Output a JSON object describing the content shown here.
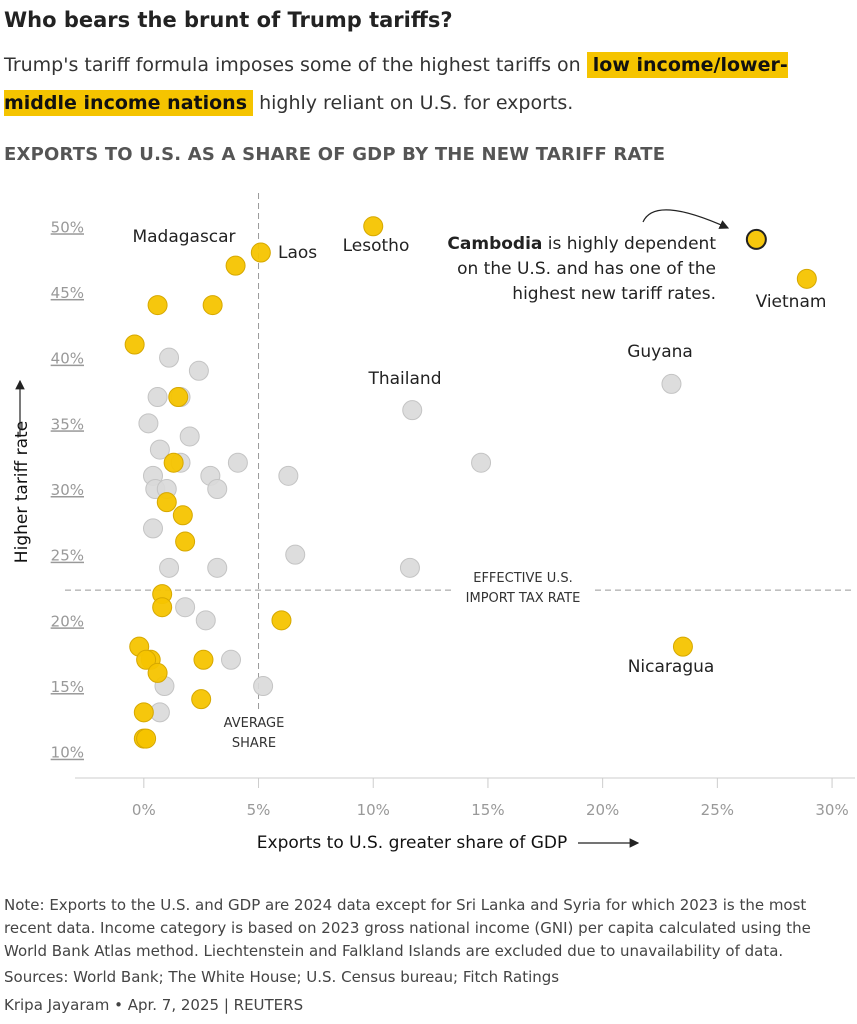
{
  "header": {
    "title": "Who bears the brunt of Trump tariffs?",
    "subtitle_pre": "Trump's tariff formula imposes some of the highest tariffs on",
    "subtitle_highlight": "low income/lower-middle income nations",
    "subtitle_post": "highly reliant on U.S. for exports."
  },
  "chart_data": {
    "type": "scatter",
    "title": "EXPORTS TO U.S. AS A SHARE OF GDP BY THE NEW TARIFF RATE",
    "xlabel": "Exports to U.S. greater share of GDP",
    "ylabel": "Higher tariff rate",
    "xlim": [
      -3,
      31
    ],
    "ylim": [
      8,
      52
    ],
    "x_ticks": [
      0,
      5,
      10,
      15,
      20,
      25,
      30
    ],
    "x_tick_labels": [
      "0%",
      "5%",
      "10%",
      "15%",
      "20%",
      "25%",
      "30%"
    ],
    "y_ticks": [
      10,
      15,
      20,
      25,
      30,
      35,
      40,
      45,
      50
    ],
    "y_tick_labels": [
      "10%",
      "15%",
      "20%",
      "25%",
      "30%",
      "35%",
      "40%",
      "45%",
      "50%"
    ],
    "reference_lines": {
      "average_share_x": 5,
      "average_share_label_1": "AVERAGE",
      "average_share_label_2": "SHARE",
      "effective_rate_y": 22.3,
      "effective_rate_label_1": "EFFECTIVE U.S.",
      "effective_rate_label_2": "IMPORT TAX RATE"
    },
    "colors": {
      "highlight": "#f5c400",
      "other": "#d9d9d9"
    },
    "series": [
      {
        "name": "Low income/lower-middle income nations",
        "color": "#f5c400",
        "points": [
          {
            "x": 10.0,
            "y": 50,
            "label": "Lesotho"
          },
          {
            "x": 5.1,
            "y": 48,
            "label": "Laos"
          },
          {
            "x": 4.0,
            "y": 47,
            "label": "Madagascar"
          },
          {
            "x": 26.7,
            "y": 49,
            "label": "Cambodia",
            "emphasis": true
          },
          {
            "x": 28.9,
            "y": 46,
            "label": "Vietnam"
          },
          {
            "x": 0.6,
            "y": 44
          },
          {
            "x": 3.0,
            "y": 44
          },
          {
            "x": -0.4,
            "y": 41
          },
          {
            "x": 1.5,
            "y": 37
          },
          {
            "x": 1.3,
            "y": 32
          },
          {
            "x": 1.0,
            "y": 29
          },
          {
            "x": 1.7,
            "y": 28
          },
          {
            "x": 1.8,
            "y": 26
          },
          {
            "x": 0.8,
            "y": 22
          },
          {
            "x": 0.8,
            "y": 21
          },
          {
            "x": 6.0,
            "y": 20
          },
          {
            "x": -0.2,
            "y": 18
          },
          {
            "x": 0.3,
            "y": 17
          },
          {
            "x": 0.1,
            "y": 17
          },
          {
            "x": 0.6,
            "y": 16
          },
          {
            "x": 2.6,
            "y": 17
          },
          {
            "x": 2.5,
            "y": 14
          },
          {
            "x": 0.0,
            "y": 13
          },
          {
            "x": 0.0,
            "y": 11
          },
          {
            "x": 0.1,
            "y": 11
          },
          {
            "x": 23.5,
            "y": 18,
            "label": "Nicaragua"
          }
        ]
      },
      {
        "name": "Other nations",
        "color": "#d9d9d9",
        "points": [
          {
            "x": 1.1,
            "y": 40
          },
          {
            "x": 2.4,
            "y": 39
          },
          {
            "x": 0.6,
            "y": 37
          },
          {
            "x": 1.6,
            "y": 37
          },
          {
            "x": 0.2,
            "y": 35
          },
          {
            "x": 2.0,
            "y": 34
          },
          {
            "x": 0.7,
            "y": 33
          },
          {
            "x": 4.1,
            "y": 32
          },
          {
            "x": 1.6,
            "y": 32
          },
          {
            "x": 0.4,
            "y": 31
          },
          {
            "x": 2.9,
            "y": 31
          },
          {
            "x": 6.3,
            "y": 31
          },
          {
            "x": 0.5,
            "y": 30
          },
          {
            "x": 1.0,
            "y": 30
          },
          {
            "x": 3.2,
            "y": 30
          },
          {
            "x": 0.4,
            "y": 27
          },
          {
            "x": 6.6,
            "y": 25
          },
          {
            "x": 1.1,
            "y": 24
          },
          {
            "x": 3.2,
            "y": 24
          },
          {
            "x": 11.6,
            "y": 24
          },
          {
            "x": 1.8,
            "y": 21
          },
          {
            "x": 2.7,
            "y": 20
          },
          {
            "x": 3.8,
            "y": 17
          },
          {
            "x": 0.9,
            "y": 15
          },
          {
            "x": 5.2,
            "y": 15
          },
          {
            "x": 0.7,
            "y": 13
          },
          {
            "x": 11.7,
            "y": 36,
            "label": "Thailand"
          },
          {
            "x": 14.7,
            "y": 32
          },
          {
            "x": 23.0,
            "y": 38,
            "label": "Guyana"
          }
        ]
      }
    ],
    "country_labels": {
      "Madagascar": "Madagascar",
      "Laos": "Laos",
      "Lesotho": "Lesotho",
      "Vietnam": "Vietnam",
      "Guyana": "Guyana",
      "Thailand": "Thailand",
      "Nicaragua": "Nicaragua"
    },
    "annotation": {
      "bold": "Cambodia",
      "line1_rest": " is highly dependent",
      "line2": "on the U.S. and has one of the",
      "line3": "highest new tariff rates."
    }
  },
  "footer": {
    "note": "Note: Exports to the U.S. and GDP are 2024 data except for Sri Lanka and Syria for which 2023 is the most recent data. Income category is based on 2023 gross national income (GNI) per capita calculated using the World Bank Atlas method. Liechtenstein and Falkland Islands are excluded due to unavailability of data.",
    "sources": "Sources: World Bank; The White House; U.S. Census bureau; Fitch Ratings",
    "credit": "Kripa Jayaram • Apr. 7, 2025 | REUTERS"
  }
}
